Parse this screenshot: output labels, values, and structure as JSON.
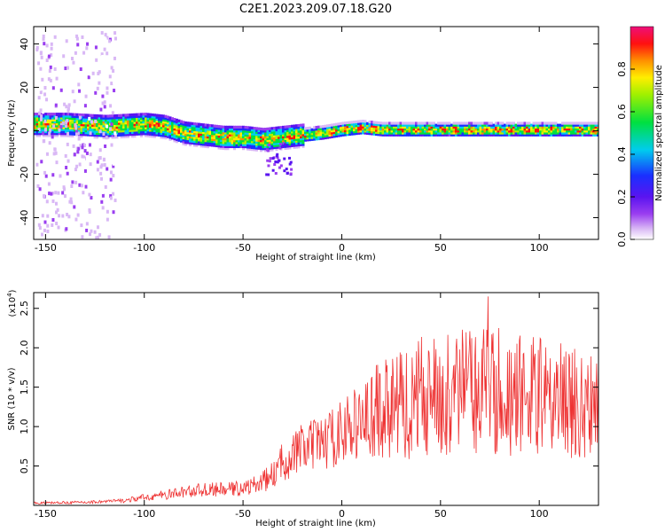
{
  "title": "C2E1.2023.209.07.18.G20",
  "colors": {
    "snr_line": "#ee3333",
    "axes": "#000000"
  },
  "chart_data": [
    {
      "type": "heatmap",
      "xlabel": "Height of straight line (km)",
      "ylabel": "Frequency (Hz)",
      "xlim": [
        -156,
        130
      ],
      "ylim": [
        -50,
        48
      ],
      "xticks": [
        -150,
        -100,
        -50,
        0,
        50,
        100
      ],
      "yticks": [
        -40,
        -20,
        0,
        20,
        40
      ],
      "colorbar": {
        "label": "Normalized spectral amplitude",
        "range": [
          0,
          1
        ],
        "ticks": [
          "0.0",
          "0.2",
          "0.4",
          "0.6",
          "0.8"
        ],
        "colormap": "rainbow (white-purple-blue-cyan-green-yellow-red-magenta)"
      },
      "ridge": {
        "description": "Dominant frequency line vs height",
        "x": [
          -156,
          -140,
          -120,
          -100,
          -90,
          -80,
          -70,
          -60,
          -50,
          -40,
          -30,
          -20,
          -10,
          0,
          10,
          20,
          40,
          60,
          80,
          100,
          120,
          130
        ],
        "y": [
          3,
          3,
          2,
          3,
          2,
          -1,
          -2,
          -3,
          -3,
          -4,
          -3,
          -2,
          -1,
          0.5,
          1.5,
          0.5,
          0.5,
          0.5,
          0.5,
          0.5,
          0.5,
          0.5
        ]
      }
    },
    {
      "type": "line",
      "xlabel": "Height of straight line (km)",
      "ylabel": "SNR (10 * v/v)",
      "y_multiplier": "(x10",
      "y_multiplier_exp": "4",
      "y_multiplier_close": ")",
      "xlim": [
        -156,
        130
      ],
      "ylim": [
        0,
        2.7
      ],
      "xticks": [
        -150,
        -100,
        -50,
        0,
        50,
        100
      ],
      "yticks": [
        "0.5",
        "1.0",
        "1.5",
        "2.0",
        "2.5"
      ],
      "series": [
        {
          "envelope_x": [
            -156,
            -130,
            -110,
            -100,
            -90,
            -80,
            -70,
            -60,
            -50,
            -45,
            -40,
            -35,
            -30,
            -25,
            -20,
            -15,
            -10,
            -5,
            0,
            5,
            10,
            15,
            20,
            25,
            30,
            35,
            40,
            45,
            50,
            55,
            60,
            65,
            70,
            75,
            80,
            85,
            90,
            95,
            100,
            105,
            110,
            115,
            120,
            125,
            130
          ],
          "envelope_y": [
            0.03,
            0.04,
            0.06,
            0.1,
            0.13,
            0.17,
            0.2,
            0.2,
            0.22,
            0.25,
            0.3,
            0.38,
            0.55,
            0.65,
            0.72,
            0.75,
            0.8,
            0.85,
            0.95,
            1.0,
            1.05,
            1.1,
            1.15,
            1.2,
            1.25,
            1.3,
            1.35,
            1.35,
            1.4,
            1.4,
            1.4,
            1.4,
            1.45,
            1.5,
            1.4,
            1.35,
            1.35,
            1.35,
            1.35,
            1.3,
            1.3,
            1.3,
            1.25,
            1.2,
            1.2
          ],
          "peak_x": 74,
          "peak_y": 2.65
        }
      ]
    }
  ]
}
